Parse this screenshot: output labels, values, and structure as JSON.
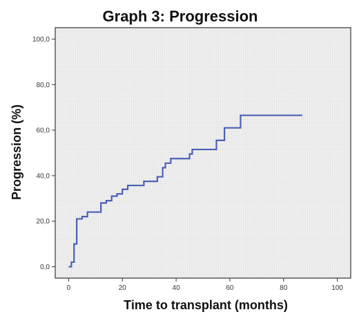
{
  "chart_data": {
    "type": "line",
    "title": "Graph 3: Progression",
    "xlabel": "Time to transplant (months)",
    "ylabel": "Progression (%)",
    "xlim": [
      -5,
      105
    ],
    "ylim": [
      -5,
      105
    ],
    "x_ticks": [
      0,
      20,
      40,
      60,
      80,
      100
    ],
    "x_tick_labels": [
      "0",
      "20",
      "40",
      "60",
      "80",
      "100"
    ],
    "y_ticks": [
      0,
      20,
      40,
      60,
      80,
      100
    ],
    "y_tick_labels": [
      "0,0",
      "20,0",
      "40,0",
      "60,0",
      "80,0",
      "100,0"
    ],
    "grid": false,
    "step": "post",
    "series": [
      {
        "color": "#4a60b5",
        "x": [
          0,
          1,
          2,
          3,
          5,
          7,
          12,
          14,
          16,
          18,
          20,
          22,
          28,
          33,
          35,
          36,
          38,
          45,
          46,
          55,
          58,
          64,
          87
        ],
        "y": [
          0,
          2,
          10,
          21,
          22,
          24,
          28,
          29,
          31,
          32,
          34,
          35.7,
          37.5,
          39.5,
          43.5,
          45.5,
          47.5,
          49.5,
          51.5,
          55.5,
          61,
          66.5,
          66.5
        ]
      }
    ]
  }
}
